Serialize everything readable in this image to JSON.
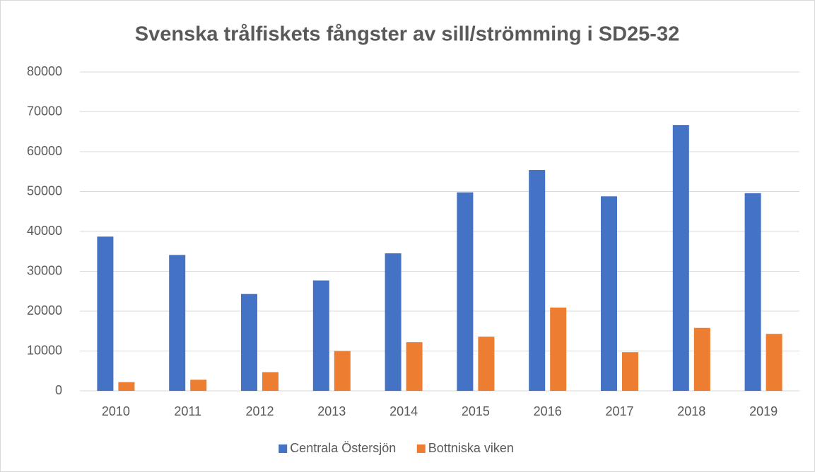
{
  "chart_data": {
    "type": "bar",
    "title": "Svenska trålfiskets fångster av sill/strömming i SD25-32",
    "categories": [
      "2010",
      "2011",
      "2012",
      "2013",
      "2014",
      "2015",
      "2016",
      "2017",
      "2018",
      "2019"
    ],
    "series": [
      {
        "name": "Centrala Östersjön",
        "color": "#4472c4",
        "values": [
          38700,
          34100,
          24300,
          27700,
          34500,
          49800,
          55400,
          48800,
          66700,
          49600
        ]
      },
      {
        "name": "Bottniska viken",
        "color": "#ed7d31",
        "values": [
          2200,
          2800,
          4700,
          10000,
          12200,
          13600,
          20900,
          9700,
          15800,
          14300
        ]
      }
    ],
    "ylim": [
      0,
      80000
    ],
    "yticks": [
      0,
      10000,
      20000,
      30000,
      40000,
      50000,
      60000,
      70000,
      80000
    ],
    "grid": true,
    "legend": "bottom"
  }
}
